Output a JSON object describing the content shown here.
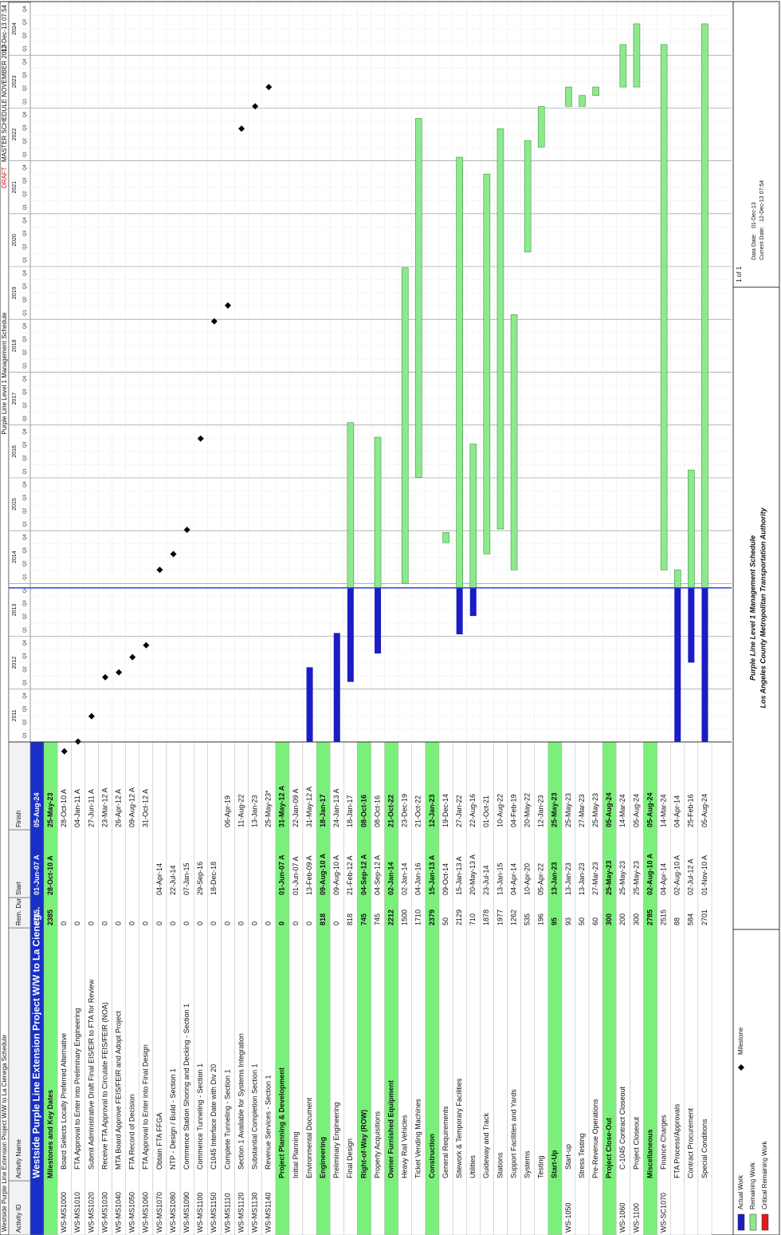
{
  "header": {
    "left": "Westside Purple Line Extension Project W/W to La Cienega Schedule",
    "center": "Purple Line Level 1 Management Schedule",
    "draft": "DRAFT",
    "right": "MASTER SCHEDULE NOVEMBER 2013",
    "stamp": "12-Dec-13 07:54"
  },
  "columns": [
    "Activity ID",
    "Activity Name",
    "Rem. Dur.",
    "Start",
    "Finish"
  ],
  "timeline": {
    "years": [
      2011,
      2012,
      2013,
      2014,
      2015,
      2016,
      2017,
      2018,
      2019,
      2020,
      2021,
      2022,
      2023,
      2024
    ],
    "quarters": [
      "Q1",
      "Q2",
      "Q3",
      "Q4"
    ]
  },
  "rows": [
    {
      "name": "Westside Purple Line Extension Project W/W to La Cieneg...",
      "dur": 2785,
      "start": "01-Jun-07 A",
      "finish": "05-Aug-24",
      "style": "project"
    },
    {
      "name": "Milestones and Key Dates",
      "dur": 2385,
      "start": "28-Oct-10 A",
      "finish": "25-May-23",
      "style": "group"
    },
    {
      "id": "WS-MS1000",
      "name": "Board Selects Locally Preferred Alternative",
      "dur": 0,
      "finish": "28-Oct-10 A"
    },
    {
      "id": "WS-MS1010",
      "name": "FTA Approval to Enter into Preliminary Engineering",
      "dur": 0,
      "finish": "04-Jan-11 A"
    },
    {
      "id": "WS-MS1020",
      "name": "Submit Administrative Draft Final EIS/EIR to FTA for Review",
      "dur": 0,
      "finish": "27-Jun-11 A"
    },
    {
      "id": "WS-MS1030",
      "name": "Receive FTA Approval to Circulate FEIS/FEIR (NOA)",
      "dur": 0,
      "finish": "23-Mar-12 A"
    },
    {
      "id": "WS-MS1040",
      "name": "MTA Board Approve FEIS/FEIR and Adopt Project",
      "dur": 0,
      "finish": "26-Apr-12 A"
    },
    {
      "id": "WS-MS1050",
      "name": "FTA Record of Decision",
      "dur": 0,
      "finish": "09-Aug-12 A"
    },
    {
      "id": "WS-MS1060",
      "name": "FTA Approval to Enter into Final Design",
      "dur": 0,
      "finish": "31-Oct-12 A"
    },
    {
      "id": "WS-MS1070",
      "name": "Obtain FTA FFGA",
      "dur": 0,
      "start": "04-Apr-14"
    },
    {
      "id": "WS-MS1080",
      "name": "NTP - Design / Build - Section 1",
      "dur": 0,
      "start": "22-Jul-14"
    },
    {
      "id": "WS-MS1090",
      "name": "Commence Station Shoring and Decking - Section 1",
      "dur": 0,
      "start": "07-Jan-15"
    },
    {
      "id": "WS-MS1100",
      "name": "Commence Tunneling - Section 1",
      "dur": 0,
      "start": "29-Sep-16"
    },
    {
      "id": "WS-MS1150",
      "name": "C1045 Interface Date with Div 20",
      "dur": 0,
      "start": "18-Dec-18"
    },
    {
      "id": "WS-MS1110",
      "name": "Complete Tunneling - Section 1",
      "dur": 0,
      "finish": "06-Apr-19"
    },
    {
      "id": "WS-MS1120",
      "name": "Section 1 Available for Systems Integration",
      "dur": 0,
      "finish": "11-Aug-22"
    },
    {
      "id": "WS-MS1130",
      "name": "Substantial Completion Section 1",
      "dur": 0,
      "finish": "13-Jan-23"
    },
    {
      "id": "WS-MS1140",
      "name": "Revenue Services - Section 1",
      "dur": 0,
      "finish": "25-May-23*"
    },
    {
      "name": "Project Planning & Development",
      "dur": 0,
      "start": "01-Jun-07 A",
      "finish": "31-May-12 A",
      "style": "group"
    },
    {
      "name": "Initial Planning",
      "dur": 0,
      "start": "01-Jun-07 A",
      "finish": "22-Jan-09 A"
    },
    {
      "name": "Environmental Document",
      "dur": 0,
      "start": "13-Feb-09 A",
      "finish": "31-May-12 A"
    },
    {
      "name": "Engineering",
      "dur": 818,
      "start": "09-Aug-10 A",
      "finish": "18-Jan-17",
      "style": "group"
    },
    {
      "name": "Preliminary Engineering",
      "dur": 0,
      "start": "09-Aug-10 A",
      "finish": "24-Jan-13 A"
    },
    {
      "name": "Final Design",
      "dur": 818,
      "start": "21-Feb-12 A",
      "finish": "18-Jan-17"
    },
    {
      "name": "Right-of-Way (ROW)",
      "dur": 745,
      "start": "04-Sep-12 A",
      "finish": "08-Oct-16",
      "style": "group"
    },
    {
      "name": "Property Acquisitions",
      "dur": 745,
      "start": "04-Sep-12 A",
      "finish": "08-Oct-16"
    },
    {
      "name": "Owner Furnished Equipment",
      "dur": 2212,
      "start": "02-Jan-14",
      "finish": "21-Oct-22",
      "style": "group"
    },
    {
      "name": "Heavy Rail Vehicles",
      "dur": 1500,
      "start": "02-Jan-14",
      "finish": "23-Dec-19"
    },
    {
      "name": "Ticket Vending Machines",
      "dur": 1710,
      "start": "04-Jan-16",
      "finish": "21-Oct-22"
    },
    {
      "name": "Construction",
      "dur": 2379,
      "start": "15-Jan-13 A",
      "finish": "12-Jan-23",
      "style": "group"
    },
    {
      "name": "General Requirements",
      "dur": 50,
      "start": "09-Oct-14",
      "finish": "19-Dec-14"
    },
    {
      "name": "Sitework & Temporary Facilities",
      "dur": 2129,
      "start": "15-Jan-13 A",
      "finish": "27-Jan-22"
    },
    {
      "name": "Utilities",
      "dur": 710,
      "start": "20-May-13 A",
      "finish": "22-Aug-16"
    },
    {
      "name": "Guideway and Track",
      "dur": 1878,
      "start": "23-Jul-14",
      "finish": "01-Oct-21"
    },
    {
      "name": "Stations",
      "dur": 1977,
      "start": "13-Jan-15",
      "finish": "10-Aug-22"
    },
    {
      "name": "Support Facilities and Yards",
      "dur": 1262,
      "start": "04-Apr-14",
      "finish": "04-Feb-19"
    },
    {
      "name": "Systems",
      "dur": 535,
      "start": "10-Apr-20",
      "finish": "20-May-22"
    },
    {
      "name": "Testing",
      "dur": 196,
      "start": "05-Apr-22",
      "finish": "12-Jan-23"
    },
    {
      "name": "Start-Up",
      "dur": 95,
      "start": "13-Jan-23",
      "finish": "25-May-23",
      "style": "group"
    },
    {
      "id": "WS-1050",
      "name": "Start-up",
      "dur": 93,
      "start": "13-Jan-23",
      "finish": "25-May-23"
    },
    {
      "name": "Stress Testing",
      "dur": 50,
      "start": "13-Jan-23",
      "finish": "27-Mar-23"
    },
    {
      "name": "Pre-Revenue Operations",
      "dur": 60,
      "start": "27-Mar-23",
      "finish": "25-May-23"
    },
    {
      "name": "Project Close-Out",
      "dur": 300,
      "start": "25-May-23",
      "finish": "05-Aug-24",
      "style": "group"
    },
    {
      "id": "WS-1060",
      "name": "C-1045 Contract Closeout",
      "dur": 200,
      "start": "25-May-23",
      "finish": "14-Mar-24"
    },
    {
      "id": "WS-1100",
      "name": "Project Closeout",
      "dur": 300,
      "start": "25-May-23",
      "finish": "05-Aug-24"
    },
    {
      "name": "Miscellaneous",
      "dur": 2785,
      "start": "02-Aug-10 A",
      "finish": "05-Aug-24",
      "style": "group"
    },
    {
      "id": "WS-SC1070",
      "name": "Finance Charges",
      "dur": 2515,
      "start": "04-Apr-14",
      "finish": "14-Mar-24"
    },
    {
      "name": "FTA Process/Approvals",
      "dur": 88,
      "start": "02-Aug-10 A",
      "finish": "04-Apr-14"
    },
    {
      "name": "Contract Procurement",
      "dur": 584,
      "start": "02-Jul-12 A",
      "finish": "25-Feb-16"
    },
    {
      "name": "Special Conditions",
      "dur": 2701,
      "start": "01-Nov-10 A",
      "finish": "05-Aug-24"
    }
  ],
  "legend": [
    {
      "name": "Actual Work",
      "color": "#1c1cc4"
    },
    {
      "name": "Remaining Work",
      "color": "#8ee88e"
    },
    {
      "name": "Critical Remaining Work",
      "color": "#e01818"
    },
    {
      "name": "Milestone",
      "color": "#000000"
    }
  ],
  "footer": {
    "title": "Purple Line Level 1 Management Schedule",
    "org": "Los Angeles County Metropolitan Transportation Authority",
    "page": "1 of 1",
    "data_date_label": "Data Date:",
    "data_date": "01-Dec-13",
    "current_date_label": "Current Date:",
    "current_date": "12-Dec-13 07:54"
  }
}
